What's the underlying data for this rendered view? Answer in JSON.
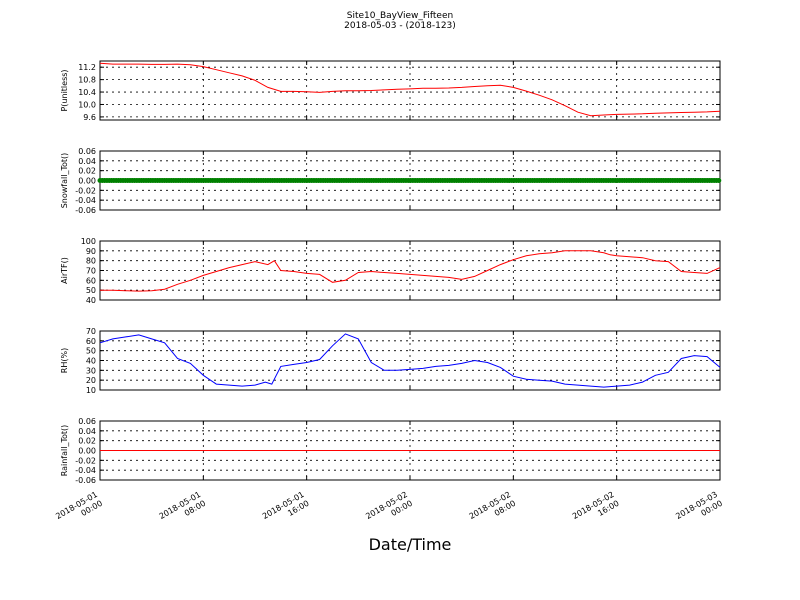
{
  "title": "Site10_BayView_Fifteen",
  "subtitle": "2018-05-03 - (2018-123)",
  "xlabel": "Date/Time",
  "x_ticks": [
    "2018-05-01 00:00",
    "2018-05-01 08:00",
    "2018-05-01 16:00",
    "2018-05-02 00:00",
    "2018-05-02 08:00",
    "2018-05-02 16:00",
    "2018-05-03 00:00"
  ],
  "chart_data": [
    {
      "type": "line",
      "ylabel": "P(unitless)",
      "ylim": [
        9.5,
        11.4
      ],
      "yticks": [
        "11.2",
        "10.8",
        "10.4",
        "10.0",
        "9.6"
      ],
      "ytick_values": [
        11.2,
        10.8,
        10.4,
        10.0,
        9.6
      ],
      "grid": true,
      "series": [
        {
          "color": "#ff0000",
          "x_hours": [
            0,
            1,
            2,
            3,
            4,
            5,
            6,
            7,
            8,
            9,
            10,
            11,
            12,
            13,
            14,
            15,
            16,
            17,
            18,
            19,
            20,
            21,
            22,
            23,
            24,
            25,
            26,
            27,
            28,
            29,
            30,
            31,
            32,
            33,
            34,
            35,
            36,
            37,
            38,
            39,
            40,
            41,
            42,
            43,
            44,
            45,
            46,
            47,
            48
          ],
          "values": [
            11.33,
            11.3,
            11.3,
            11.3,
            11.29,
            11.29,
            11.3,
            11.28,
            11.22,
            11.12,
            11.02,
            10.92,
            10.78,
            10.55,
            10.42,
            10.42,
            10.41,
            10.39,
            10.42,
            10.44,
            10.44,
            10.45,
            10.47,
            10.49,
            10.5,
            10.52,
            10.52,
            10.53,
            10.55,
            10.58,
            10.6,
            10.62,
            10.55,
            10.43,
            10.3,
            10.15,
            9.96,
            9.75,
            9.64,
            9.66,
            9.68,
            9.69,
            9.7,
            9.72,
            9.73,
            9.74,
            9.75,
            9.76,
            9.78
          ]
        }
      ]
    },
    {
      "type": "line",
      "ylabel": "Snowfall_Tot()",
      "ylim": [
        -0.06,
        0.06
      ],
      "yticks": [
        "0.06",
        "0.04",
        "0.02",
        "0.00",
        "-0.02",
        "-0.04",
        "-0.06"
      ],
      "ytick_values": [
        0.06,
        0.04,
        0.02,
        0.0,
        -0.02,
        -0.04,
        -0.06
      ],
      "grid": true,
      "series": [
        {
          "color": "#008000",
          "marker": "circle",
          "x_hours": [
            0,
            48
          ],
          "values": [
            0,
            0
          ]
        }
      ]
    },
    {
      "type": "line",
      "ylabel": "AirTF()",
      "ylim": [
        40,
        100
      ],
      "yticks": [
        "100",
        "90",
        "80",
        "70",
        "60",
        "50",
        "40"
      ],
      "ytick_values": [
        100,
        90,
        80,
        70,
        60,
        50,
        40
      ],
      "grid": true,
      "series": [
        {
          "color": "#ff0000",
          "x_hours": [
            0,
            1,
            2,
            3,
            4,
            5,
            6,
            7,
            8,
            9,
            10,
            11,
            12,
            13,
            13.5,
            14,
            15,
            16,
            17,
            18,
            19,
            20,
            21,
            22,
            23,
            24,
            25,
            26,
            27,
            28,
            29,
            30,
            31,
            32,
            33,
            34,
            35,
            36,
            37,
            38,
            39,
            39.5,
            40,
            41,
            42,
            43,
            44,
            45,
            46,
            47,
            48
          ],
          "values": [
            50,
            50,
            49.5,
            49,
            49.5,
            51,
            56,
            60,
            65,
            69,
            73,
            76,
            79,
            76,
            80,
            70,
            69,
            67,
            66,
            58,
            60,
            68,
            69,
            68,
            67,
            66,
            65,
            64,
            63,
            61,
            64,
            70,
            76,
            81,
            85,
            87,
            88,
            90,
            90,
            90,
            88,
            86,
            85,
            84,
            83,
            80,
            79,
            69,
            68,
            67,
            73
          ]
        }
      ]
    },
    {
      "type": "line",
      "ylabel": "RH(%)",
      "ylim": [
        10,
        70
      ],
      "yticks": [
        "70",
        "60",
        "50",
        "40",
        "30",
        "20",
        "10"
      ],
      "ytick_values": [
        70,
        60,
        50,
        40,
        30,
        20,
        10
      ],
      "grid": true,
      "series": [
        {
          "color": "#0000ff",
          "x_hours": [
            0,
            1,
            2,
            3,
            4,
            5,
            6,
            7,
            8,
            9,
            10,
            11,
            12,
            12.8,
            13.3,
            14,
            15,
            16,
            17,
            18,
            19,
            20,
            21,
            22,
            23,
            24,
            25,
            26,
            27,
            28,
            29,
            30,
            31,
            32,
            33,
            34,
            35,
            36,
            37,
            38,
            39,
            40,
            41,
            42,
            43,
            44,
            45,
            46,
            47,
            48
          ],
          "values": [
            58,
            62,
            64,
            66,
            62,
            58,
            42,
            37,
            25,
            16,
            15,
            14,
            15,
            18,
            16,
            34,
            36,
            38,
            41,
            55,
            67,
            62,
            38,
            30,
            30,
            31,
            32,
            34,
            35,
            37,
            40,
            38,
            33,
            24,
            21,
            20,
            19,
            16,
            15,
            14,
            13,
            14,
            15,
            18,
            25,
            28,
            42,
            45,
            44,
            33
          ]
        }
      ]
    },
    {
      "type": "line",
      "ylabel": "Rainfall_Tot()",
      "ylim": [
        -0.06,
        0.06
      ],
      "yticks": [
        "0.06",
        "0.04",
        "0.02",
        "0.00",
        "-0.02",
        "-0.04",
        "-0.06"
      ],
      "ytick_values": [
        0.06,
        0.04,
        0.02,
        0.0,
        -0.02,
        -0.04,
        -0.06
      ],
      "grid": true,
      "series": [
        {
          "color": "#ff0000",
          "x_hours": [
            0,
            48
          ],
          "values": [
            0,
            0
          ]
        }
      ]
    }
  ]
}
